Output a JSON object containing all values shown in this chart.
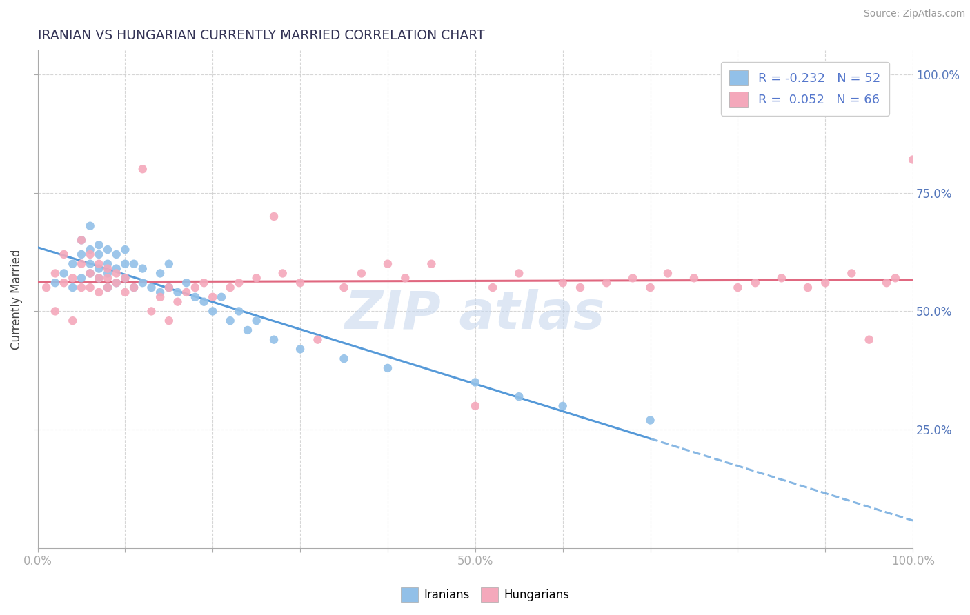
{
  "title": "IRANIAN VS HUNGARIAN CURRENTLY MARRIED CORRELATION CHART",
  "source_text": "Source: ZipAtlas.com",
  "ylabel": "Currently Married",
  "xlim": [
    0.0,
    1.0
  ],
  "ylim": [
    0.0,
    1.05
  ],
  "x_tick_pos": [
    0.0,
    0.1,
    0.2,
    0.3,
    0.4,
    0.5,
    0.6,
    0.7,
    0.8,
    0.9,
    1.0
  ],
  "x_tick_labels": [
    "0.0%",
    "",
    "",
    "",
    "",
    "50.0%",
    "",
    "",
    "",
    "",
    "100.0%"
  ],
  "y_tick_pos": [
    0.25,
    0.5,
    0.75,
    1.0
  ],
  "y_tick_labels": [
    "25.0%",
    "50.0%",
    "75.0%",
    "100.0%"
  ],
  "legend_r_iranian": "-0.232",
  "legend_n_iranian": "52",
  "legend_r_hungarian": " 0.052",
  "legend_n_hungarian": "66",
  "iranian_color": "#92c0e8",
  "hungarian_color": "#f4a8bb",
  "line_iranian_color": "#5599d8",
  "line_hungarian_color": "#e06880",
  "watermark_color": "#c8d8ee",
  "grid_color": "#cccccc",
  "title_color": "#333355",
  "tick_color": "#5577bb",
  "label_color": "#444444",
  "legend_text_color": "#5577cc",
  "background_color": "#ffffff",
  "iranians_x": [
    0.02,
    0.03,
    0.04,
    0.04,
    0.05,
    0.05,
    0.05,
    0.06,
    0.06,
    0.06,
    0.06,
    0.07,
    0.07,
    0.07,
    0.07,
    0.08,
    0.08,
    0.08,
    0.08,
    0.09,
    0.09,
    0.09,
    0.1,
    0.1,
    0.1,
    0.11,
    0.11,
    0.12,
    0.12,
    0.13,
    0.14,
    0.14,
    0.15,
    0.15,
    0.16,
    0.17,
    0.18,
    0.19,
    0.2,
    0.21,
    0.22,
    0.23,
    0.24,
    0.25,
    0.27,
    0.3,
    0.35,
    0.4,
    0.5,
    0.55,
    0.6,
    0.7
  ],
  "iranians_y": [
    0.56,
    0.58,
    0.6,
    0.55,
    0.57,
    0.62,
    0.65,
    0.58,
    0.6,
    0.63,
    0.68,
    0.57,
    0.59,
    0.62,
    0.64,
    0.55,
    0.58,
    0.6,
    0.63,
    0.56,
    0.59,
    0.62,
    0.57,
    0.6,
    0.63,
    0.55,
    0.6,
    0.56,
    0.59,
    0.55,
    0.54,
    0.58,
    0.55,
    0.6,
    0.54,
    0.56,
    0.53,
    0.52,
    0.5,
    0.53,
    0.48,
    0.5,
    0.46,
    0.48,
    0.44,
    0.42,
    0.4,
    0.38,
    0.35,
    0.32,
    0.3,
    0.27
  ],
  "hungarians_x": [
    0.01,
    0.02,
    0.02,
    0.03,
    0.03,
    0.04,
    0.04,
    0.05,
    0.05,
    0.05,
    0.06,
    0.06,
    0.06,
    0.07,
    0.07,
    0.07,
    0.08,
    0.08,
    0.08,
    0.09,
    0.09,
    0.1,
    0.1,
    0.11,
    0.12,
    0.13,
    0.14,
    0.15,
    0.15,
    0.16,
    0.17,
    0.18,
    0.19,
    0.2,
    0.22,
    0.23,
    0.25,
    0.27,
    0.28,
    0.3,
    0.32,
    0.35,
    0.37,
    0.4,
    0.42,
    0.45,
    0.5,
    0.52,
    0.55,
    0.6,
    0.62,
    0.65,
    0.68,
    0.7,
    0.72,
    0.75,
    0.8,
    0.82,
    0.85,
    0.88,
    0.9,
    0.93,
    0.95,
    0.97,
    0.98,
    1.0
  ],
  "hungarians_y": [
    0.55,
    0.5,
    0.58,
    0.56,
    0.62,
    0.48,
    0.57,
    0.55,
    0.6,
    0.65,
    0.55,
    0.58,
    0.62,
    0.54,
    0.57,
    0.6,
    0.55,
    0.57,
    0.59,
    0.56,
    0.58,
    0.54,
    0.57,
    0.55,
    0.8,
    0.5,
    0.53,
    0.55,
    0.48,
    0.52,
    0.54,
    0.55,
    0.56,
    0.53,
    0.55,
    0.56,
    0.57,
    0.7,
    0.58,
    0.56,
    0.44,
    0.55,
    0.58,
    0.6,
    0.57,
    0.6,
    0.3,
    0.55,
    0.58,
    0.56,
    0.55,
    0.56,
    0.57,
    0.55,
    0.58,
    0.57,
    0.55,
    0.56,
    0.57,
    0.55,
    0.56,
    0.58,
    0.44,
    0.56,
    0.57,
    0.82
  ]
}
